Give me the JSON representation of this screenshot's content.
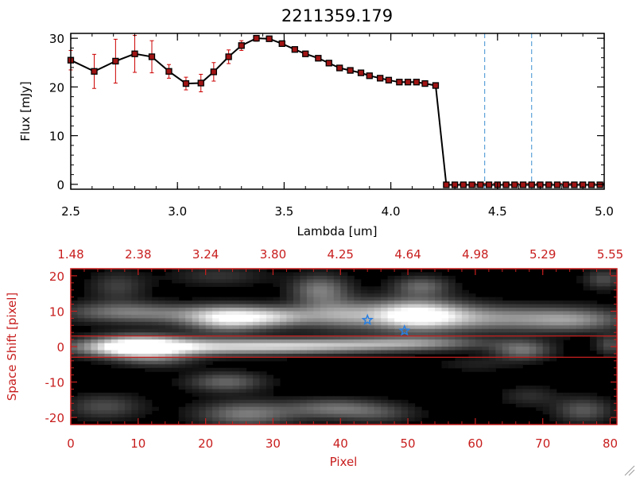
{
  "colors": {
    "axis_red": "#c81e1e",
    "marker": "#a01414",
    "errorbar": "#cc0000",
    "guide_blue": "#3a8fd0",
    "star_blue": "#2a7fe0"
  },
  "chart_data": [
    {
      "type": "line",
      "title": "2211359.179",
      "xlabel": "Lambda [um]",
      "ylabel": "Flux [mJy]",
      "xlim": [
        2.5,
        5.0
      ],
      "ylim": [
        -1,
        31
      ],
      "xticks": [
        2.5,
        3.0,
        3.5,
        4.0,
        4.5,
        5.0
      ],
      "xtick_labels": [
        "2.5",
        "3.0",
        "3.5",
        "4.0",
        "4.5",
        "5.0"
      ],
      "yticks": [
        0,
        10,
        20,
        30
      ],
      "ytick_labels": [
        "0",
        "10",
        "20",
        "30"
      ],
      "vlines": [
        4.44,
        4.66
      ],
      "series": [
        {
          "name": "flux",
          "x": [
            2.5,
            2.61,
            2.71,
            2.8,
            2.88,
            2.96,
            3.04,
            3.11,
            3.17,
            3.24,
            3.3,
            3.37,
            3.43,
            3.49,
            3.55,
            3.6,
            3.66,
            3.71,
            3.76,
            3.81,
            3.86,
            3.9,
            3.95,
            3.99,
            4.04,
            4.08,
            4.12,
            4.16,
            4.21,
            4.26,
            4.3,
            4.34,
            4.38,
            4.42,
            4.46,
            4.5,
            4.54,
            4.58,
            4.62,
            4.66,
            4.7,
            4.74,
            4.78,
            4.82,
            4.86,
            4.9,
            4.94,
            4.98
          ],
          "y": [
            25.5,
            23.2,
            25.3,
            26.8,
            26.2,
            23.2,
            20.7,
            20.8,
            23.1,
            26.2,
            28.5,
            30.0,
            29.9,
            28.9,
            27.7,
            26.8,
            25.9,
            24.9,
            23.9,
            23.4,
            22.9,
            22.3,
            21.8,
            21.4,
            21.0,
            21.0,
            21.0,
            20.7,
            20.3,
            -0.1,
            -0.1,
            -0.1,
            -0.1,
            -0.1,
            -0.1,
            -0.1,
            -0.1,
            -0.1,
            -0.1,
            -0.1,
            -0.1,
            -0.1,
            -0.1,
            -0.1,
            -0.1,
            -0.1,
            -0.1,
            -0.1
          ],
          "yerr": [
            2.0,
            3.5,
            4.5,
            3.8,
            3.3,
            1.4,
            1.3,
            1.8,
            1.9,
            1.4,
            1.0,
            0.6,
            0.5,
            0.4,
            0.4,
            0.4,
            0.3,
            0.3,
            0.3,
            0.3,
            0.3,
            0.3,
            0.3,
            0.3,
            0.3,
            0.3,
            0.3,
            0.3,
            0.3,
            0,
            0,
            0,
            0,
            0,
            0,
            0,
            0,
            0,
            0,
            0,
            0,
            0,
            0,
            0,
            0,
            0,
            0,
            0
          ]
        }
      ]
    },
    {
      "type": "heatmap",
      "xlabel": "Pixel",
      "ylabel": "Space Shift [pixel]",
      "xlim": [
        0,
        81
      ],
      "ylim": [
        -22,
        22
      ],
      "xticks": [
        0,
        10,
        20,
        30,
        40,
        50,
        60,
        70,
        80
      ],
      "xtick_labels": [
        "0",
        "10",
        "20",
        "30",
        "40",
        "50",
        "60",
        "70",
        "80"
      ],
      "yticks": [
        -20,
        -10,
        0,
        10,
        20
      ],
      "ytick_labels": [
        "-20",
        "-10",
        "0",
        "10",
        "20"
      ],
      "top_axis_labels": [
        "1.48",
        "2.38",
        "3.24",
        "3.80",
        "4.25",
        "4.64",
        "4.98",
        "5.29",
        "5.55"
      ],
      "hlines": [
        3,
        -3
      ],
      "stars": [
        {
          "pixel": 44,
          "shift": 7.5
        },
        {
          "pixel": 49.5,
          "shift": 4.5
        }
      ],
      "blobs": [
        {
          "x": 10,
          "y": 0,
          "sx": 5,
          "sy": 2.2,
          "v": 1.0
        },
        {
          "x": 20,
          "y": -0.2,
          "sx": 14,
          "sy": 1.6,
          "v": 0.62
        },
        {
          "x": 38,
          "y": 0.4,
          "sx": 12,
          "sy": 1.4,
          "v": 0.5
        },
        {
          "x": 52,
          "y": 1.2,
          "sx": 7,
          "sy": 1.3,
          "v": 0.35
        },
        {
          "x": 51,
          "y": 9,
          "sx": 5,
          "sy": 3,
          "v": 0.95
        },
        {
          "x": 63,
          "y": 8,
          "sx": 10,
          "sy": 2.5,
          "v": 0.55
        },
        {
          "x": 75,
          "y": 7.5,
          "sx": 5,
          "sy": 2.2,
          "v": 0.35
        },
        {
          "x": 22,
          "y": 9,
          "sx": 12,
          "sy": 2,
          "v": 0.42
        },
        {
          "x": 7,
          "y": 10,
          "sx": 6,
          "sy": 2,
          "v": 0.3
        },
        {
          "x": 23,
          "y": 7.5,
          "sx": 4,
          "sy": 2.5,
          "v": 0.62
        },
        {
          "x": 30,
          "y": 8,
          "sx": 4,
          "sy": 2,
          "v": 0.42
        },
        {
          "x": 37,
          "y": 16,
          "sx": 3,
          "sy": 3,
          "v": 0.48
        },
        {
          "x": 40,
          "y": 9,
          "sx": 4,
          "sy": 3,
          "v": 0.42
        },
        {
          "x": 52,
          "y": 17,
          "sx": 3,
          "sy": 2,
          "v": 0.4
        },
        {
          "x": 7,
          "y": 17,
          "sx": 3,
          "sy": 3,
          "v": 0.25
        },
        {
          "x": 22,
          "y": 20,
          "sx": 5,
          "sy": 2,
          "v": 0.2
        },
        {
          "x": 79,
          "y": 19,
          "sx": 2,
          "sy": 2,
          "v": 0.3
        },
        {
          "x": 67,
          "y": -1,
          "sx": 3,
          "sy": 2,
          "v": 0.45
        },
        {
          "x": 80,
          "y": 0.5,
          "sx": 1.5,
          "sy": 2,
          "v": 0.3
        },
        {
          "x": 23,
          "y": -10,
          "sx": 4,
          "sy": 2,
          "v": 0.4
        },
        {
          "x": 13,
          "y": -4,
          "sx": 4,
          "sy": 1.5,
          "v": 0.22
        },
        {
          "x": 5,
          "y": -17,
          "sx": 4,
          "sy": 2.5,
          "v": 0.3
        },
        {
          "x": 26,
          "y": -19,
          "sx": 5,
          "sy": 2.5,
          "v": 0.48
        },
        {
          "x": 39,
          "y": -17.5,
          "sx": 5,
          "sy": 2,
          "v": 0.42
        },
        {
          "x": 46,
          "y": -19,
          "sx": 4,
          "sy": 2,
          "v": 0.22
        },
        {
          "x": 68,
          "y": -14,
          "sx": 3,
          "sy": 2,
          "v": 0.18
        },
        {
          "x": 76,
          "y": -18,
          "sx": 3,
          "sy": 2.5,
          "v": 0.35
        },
        {
          "x": 60,
          "y": -5,
          "sx": 4,
          "sy": 1.5,
          "v": 0.12
        }
      ]
    }
  ]
}
